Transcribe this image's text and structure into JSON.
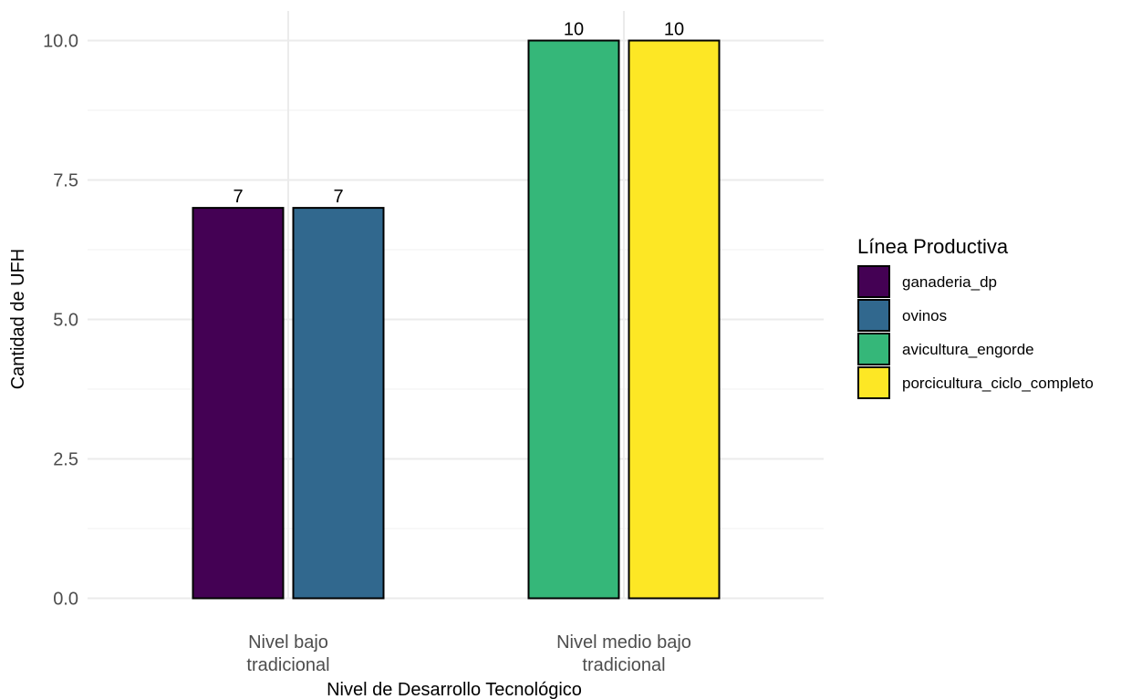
{
  "chart_data": {
    "type": "bar",
    "xlabel": "Nivel de Desarrollo Tecnológico",
    "ylabel": "Cantidad de UFH",
    "ylim": [
      0,
      10.3
    ],
    "yticks": [
      "0.0",
      "2.5",
      "5.0",
      "7.5",
      "10.0"
    ],
    "ytick_values": [
      0,
      2.5,
      5,
      7.5,
      10
    ],
    "grid": true,
    "legend_position": "right",
    "legend_title": "Línea Productiva",
    "groups": [
      {
        "category_lines": [
          "Nivel bajo",
          "tradicional"
        ],
        "bars": [
          {
            "series": "ganaderia_dp",
            "value": 7,
            "label": "7"
          },
          {
            "series": "ovinos",
            "value": 7,
            "label": "7"
          }
        ]
      },
      {
        "category_lines": [
          "Nivel medio bajo",
          "tradicional"
        ],
        "bars": [
          {
            "series": "avicultura_engorde",
            "value": 10,
            "label": "10"
          },
          {
            "series": "porcicultura_ciclo_completo",
            "value": 10,
            "label": "10"
          }
        ]
      }
    ],
    "series": [
      {
        "name": "ganaderia_dp",
        "color": "#440154"
      },
      {
        "name": "ovinos",
        "color": "#31688e"
      },
      {
        "name": "avicultura_engorde",
        "color": "#35b779"
      },
      {
        "name": "porcicultura_ciclo_completo",
        "color": "#fde725"
      }
    ]
  }
}
